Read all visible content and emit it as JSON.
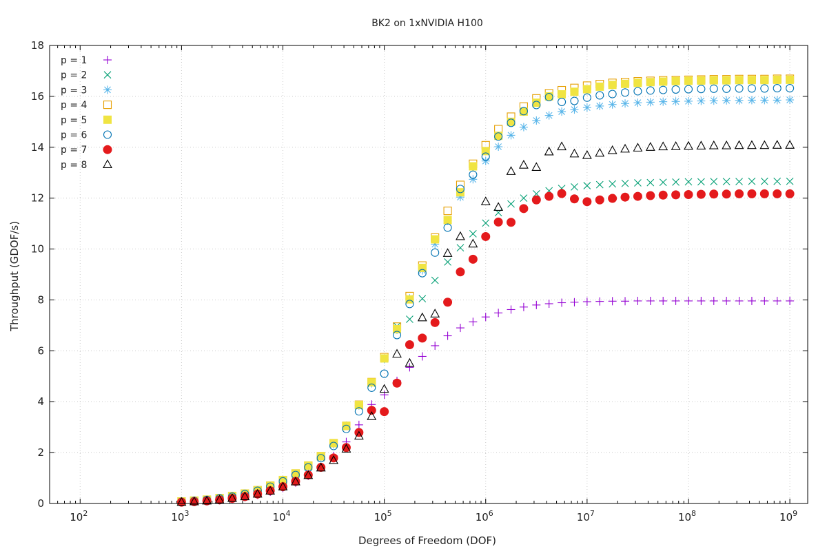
{
  "chart_data": {
    "type": "scatter",
    "title": "BK2 on 1xNVIDIA H100",
    "xlabel": "Degrees of Freedom (DOF)",
    "ylabel": "Throughput (GDOF/s)",
    "xscale": "log",
    "xlim": [
      50,
      1500000000
    ],
    "ylim": [
      0,
      18
    ],
    "x_ticks": [
      {
        "value": 100,
        "base": "10",
        "exp": "2"
      },
      {
        "value": 1000,
        "base": "10",
        "exp": "3"
      },
      {
        "value": 10000,
        "base": "10",
        "exp": "4"
      },
      {
        "value": 100000,
        "base": "10",
        "exp": "5"
      },
      {
        "value": 1000000,
        "base": "10",
        "exp": "6"
      },
      {
        "value": 10000000,
        "base": "10",
        "exp": "7"
      },
      {
        "value": 100000000,
        "base": "10",
        "exp": "8"
      },
      {
        "value": 1000000000,
        "base": "10",
        "exp": "9"
      }
    ],
    "y_ticks": [
      0,
      2,
      4,
      6,
      8,
      10,
      12,
      14,
      16,
      18
    ],
    "grid": true,
    "legend_position": "top-left",
    "x": [
      1000,
      1334,
      1778,
      2371,
      3162,
      4217,
      5623,
      7499,
      10000,
      13335,
      17783,
      23714,
      31623,
      42170,
      56234,
      74989,
      100000,
      133352,
      177828,
      237137,
      316228,
      421697,
      562341,
      749894,
      1000000,
      1333521,
      1778279,
      2371374,
      3162278,
      4216965,
      5623413,
      7498942,
      10000000,
      13335214,
      17782794,
      23713737,
      31622777,
      42169650,
      56234133,
      74989421,
      100000000,
      133352143,
      177827941,
      237137371,
      316227766,
      421696503,
      562341325,
      749894209,
      1000000000
    ],
    "series": [
      {
        "name": "p = 1",
        "marker": "plus",
        "color": "#9400d3",
        "values": [
          0.04,
          0.06,
          0.09,
          0.13,
          0.18,
          0.25,
          0.34,
          0.46,
          0.61,
          0.82,
          1.09,
          1.43,
          1.87,
          2.42,
          3.09,
          3.89,
          4.27,
          4.82,
          5.35,
          5.78,
          6.2,
          6.59,
          6.9,
          7.14,
          7.33,
          7.49,
          7.62,
          7.72,
          7.8,
          7.85,
          7.89,
          7.91,
          7.93,
          7.94,
          7.95,
          7.95,
          7.96,
          7.96,
          7.96,
          7.96,
          7.96,
          7.96,
          7.96,
          7.96,
          7.96,
          7.96,
          7.96,
          7.96,
          7.96
        ]
      },
      {
        "name": "p = 2",
        "marker": "cross",
        "color": "#009e73",
        "values": [
          0.07,
          0.1,
          0.14,
          0.19,
          0.27,
          0.36,
          0.49,
          0.65,
          0.85,
          1.11,
          1.42,
          1.8,
          2.36,
          3.02,
          3.82,
          4.72,
          5.68,
          6.97,
          7.24,
          8.05,
          8.77,
          9.49,
          10.05,
          10.6,
          11.02,
          11.43,
          11.77,
          12.0,
          12.17,
          12.29,
          12.38,
          12.44,
          12.49,
          12.53,
          12.56,
          12.58,
          12.6,
          12.61,
          12.62,
          12.63,
          12.64,
          12.64,
          12.65,
          12.65,
          12.65,
          12.66,
          12.66,
          12.66,
          12.66
        ]
      },
      {
        "name": "p = 3",
        "marker": "asterisk",
        "color": "#56b4e9",
        "values": [
          0.08,
          0.11,
          0.15,
          0.21,
          0.28,
          0.38,
          0.51,
          0.68,
          0.9,
          1.15,
          1.45,
          1.82,
          2.32,
          3.06,
          3.85,
          4.72,
          5.67,
          6.82,
          8.06,
          9.16,
          10.19,
          11.11,
          12.04,
          12.74,
          13.46,
          14.02,
          14.47,
          14.79,
          15.05,
          15.25,
          15.4,
          15.48,
          15.56,
          15.62,
          15.68,
          15.72,
          15.75,
          15.77,
          15.79,
          15.8,
          15.81,
          15.82,
          15.83,
          15.84,
          15.84,
          15.85,
          15.85,
          15.85,
          15.86
        ]
      },
      {
        "name": "p = 4",
        "marker": "open-square",
        "color": "#e69f00",
        "values": [
          0.08,
          0.11,
          0.15,
          0.21,
          0.29,
          0.39,
          0.52,
          0.7,
          0.92,
          1.18,
          1.49,
          1.86,
          2.37,
          3.05,
          3.88,
          4.77,
          5.75,
          6.95,
          8.15,
          9.35,
          10.45,
          11.5,
          12.52,
          13.35,
          14.08,
          14.71,
          15.2,
          15.6,
          15.92,
          16.12,
          16.24,
          16.33,
          16.42,
          16.48,
          16.53,
          16.56,
          16.59,
          16.61,
          16.63,
          16.64,
          16.65,
          16.66,
          16.67,
          16.67,
          16.68,
          16.68,
          16.68,
          16.69,
          16.69
        ]
      },
      {
        "name": "p = 5",
        "marker": "filled-square",
        "color": "#f0e442",
        "values": [
          0.08,
          0.11,
          0.15,
          0.21,
          0.29,
          0.39,
          0.52,
          0.7,
          0.92,
          1.18,
          1.49,
          1.86,
          2.37,
          3.05,
          3.87,
          4.76,
          5.7,
          6.85,
          8.02,
          9.26,
          10.38,
          11.14,
          12.23,
          13.25,
          13.85,
          14.45,
          15.0,
          15.4,
          15.75,
          16.0,
          16.08,
          16.18,
          16.28,
          16.38,
          16.45,
          16.49,
          16.53,
          16.56,
          16.58,
          16.6,
          16.61,
          16.62,
          16.63,
          16.63,
          16.64,
          16.64,
          16.64,
          16.65,
          16.65
        ]
      },
      {
        "name": "p = 6",
        "marker": "open-circle",
        "color": "#0072b2",
        "values": [
          0.07,
          0.1,
          0.14,
          0.2,
          0.27,
          0.37,
          0.5,
          0.66,
          0.87,
          1.12,
          1.42,
          1.78,
          2.26,
          2.93,
          3.62,
          4.55,
          5.1,
          6.62,
          7.84,
          9.05,
          9.86,
          10.84,
          12.36,
          12.92,
          13.63,
          14.42,
          14.96,
          15.42,
          15.66,
          15.97,
          15.78,
          15.82,
          15.95,
          16.04,
          16.09,
          16.15,
          16.2,
          16.23,
          16.25,
          16.27,
          16.28,
          16.29,
          16.3,
          16.3,
          16.31,
          16.31,
          16.31,
          16.32,
          16.32
        ]
      },
      {
        "name": "p = 7",
        "marker": "filled-circle",
        "color": "#e41a1c",
        "values": [
          0.05,
          0.07,
          0.1,
          0.14,
          0.2,
          0.27,
          0.37,
          0.5,
          0.66,
          0.87,
          1.12,
          1.42,
          1.79,
          2.2,
          2.79,
          3.66,
          3.61,
          4.73,
          6.24,
          6.5,
          7.11,
          7.91,
          9.1,
          9.6,
          10.49,
          11.06,
          11.05,
          11.59,
          11.93,
          12.07,
          12.18,
          11.97,
          11.86,
          11.93,
          11.99,
          12.04,
          12.07,
          12.1,
          12.12,
          12.13,
          12.14,
          12.15,
          12.16,
          12.16,
          12.17,
          12.17,
          12.17,
          12.17,
          12.17
        ]
      },
      {
        "name": "p = 8",
        "marker": "open-triangle",
        "color": "#000000",
        "values": [
          0.05,
          0.07,
          0.1,
          0.14,
          0.2,
          0.27,
          0.37,
          0.49,
          0.65,
          0.85,
          1.1,
          1.4,
          1.69,
          2.14,
          2.65,
          3.42,
          4.49,
          5.87,
          5.51,
          7.3,
          7.45,
          9.83,
          10.49,
          10.2,
          11.86,
          11.64,
          13.05,
          13.3,
          13.21,
          13.82,
          14.02,
          13.74,
          13.68,
          13.77,
          13.87,
          13.93,
          13.97,
          14.0,
          14.02,
          14.03,
          14.04,
          14.05,
          14.06,
          14.06,
          14.07,
          14.07,
          14.07,
          14.08,
          14.08
        ]
      }
    ]
  }
}
